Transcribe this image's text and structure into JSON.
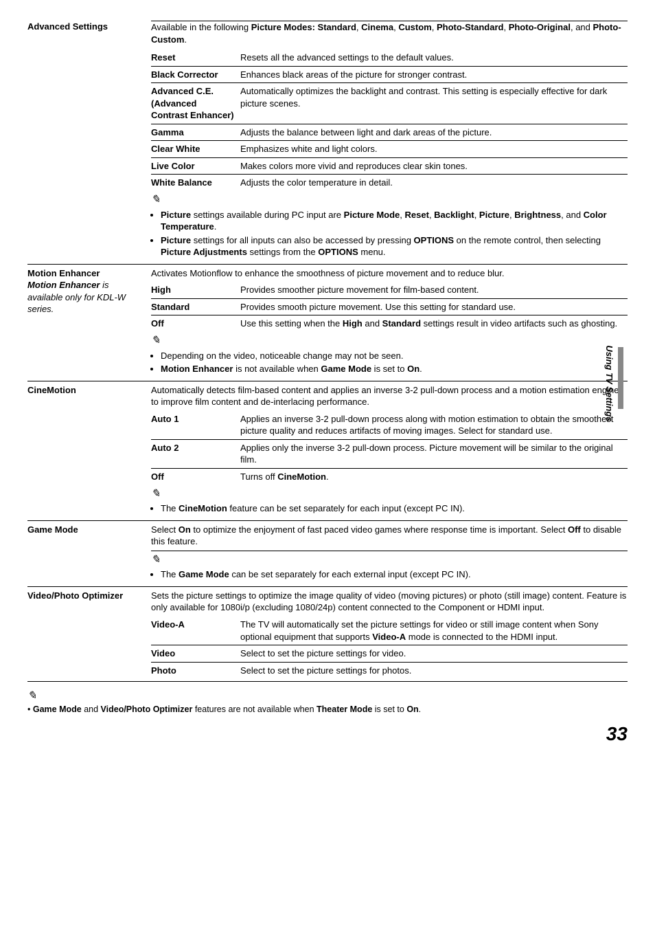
{
  "advanced_settings": {
    "label": "Advanced Settings",
    "intro": "Available in the following <b>Picture Modes: Standard</b>, <b>Cinema</b>, <b>Custom</b>, <b>Photo-Standard</b>, <b>Photo-Original</b>, and <b>Photo-Custom</b>.",
    "rows": [
      {
        "k": "Reset",
        "v": "Resets all the advanced settings to the default values."
      },
      {
        "k": "Black Corrector",
        "v": "Enhances black areas of the picture for stronger contrast."
      },
      {
        "k": "Advanced C.E. (Advanced Contrast Enhancer)",
        "v": "Automatically optimizes the backlight and contrast. This setting is especially effective for dark picture scenes."
      },
      {
        "k": "Gamma",
        "v": "Adjusts the balance between light and dark areas of the picture."
      },
      {
        "k": "Clear White",
        "v": "Emphasizes white and light colors."
      },
      {
        "k": "Live Color",
        "v": "Makes colors more vivid and reproduces clear skin tones."
      },
      {
        "k": "White Balance",
        "v": "Adjusts the color temperature in detail."
      }
    ],
    "notes": [
      "<b>Picture</b> settings available during PC input are <b>Picture Mode</b>, <b>Reset</b>, <b>Backlight</b>, <b>Picture</b>, <b>Brightness</b>, and <b>Color Temperature</b>.",
      "<b>Picture</b> settings for all inputs can also be accessed by pressing <b>OPTIONS</b> on the remote control, then selecting <b>Picture Adjustments</b> settings from the <b>OPTIONS</b> menu."
    ]
  },
  "motion_enhancer": {
    "label": "Motion Enhancer",
    "sub_label": "<b><i>Motion Enhancer</i></b><i> is available only for KDL-W series.</i>",
    "intro": "Activates Motionflow to enhance the smoothness of picture movement and to reduce blur.",
    "rows": [
      {
        "k": "High",
        "v": "Provides smoother picture movement for film-based content."
      },
      {
        "k": "Standard",
        "v": "Provides smooth picture movement. Use this setting for standard use."
      },
      {
        "k": "Off",
        "v": "Use this setting when the <b>High</b> and <b>Standard</b> settings result in video artifacts such as ghosting."
      }
    ],
    "notes": [
      "Depending on the video, noticeable change may not be seen.",
      "<b>Motion Enhancer</b> is not available when <b>Game Mode</b> is set to <b>On</b>."
    ]
  },
  "cinemotion": {
    "label": "CineMotion",
    "intro": "Automatically detects film-based content and applies an inverse 3-2 pull-down process and a motion estimation engine to improve film content and de-interlacing performance.",
    "rows": [
      {
        "k": "Auto 1",
        "v": "Applies an inverse 3-2 pull-down process along with motion estimation to obtain the smoothest picture quality and reduces artifacts of moving images. Select for standard use."
      },
      {
        "k": "Auto 2",
        "v": "Applies only the inverse 3-2 pull-down process. Picture movement will be similar to the original film."
      },
      {
        "k": "Off",
        "v": "Turns off <b>CineMotion</b>."
      }
    ],
    "notes": [
      "The <b>CineMotion</b> feature can be set separately for each input (except PC IN)."
    ]
  },
  "game_mode": {
    "label": "Game Mode",
    "intro": "Select <b>On</b> to optimize the enjoyment of fast paced video games where response time is important. Select <b>Off</b> to disable this feature.",
    "notes": [
      "The <b>Game Mode</b> can be set separately for each external input (except PC IN)."
    ]
  },
  "video_photo": {
    "label": "Video/Photo Optimizer",
    "intro": "Sets the picture settings to optimize the image quality of video (moving pictures) or photo (still image) content. Feature is only available for 1080i/p (excluding 1080/24p) content connected to the Component or HDMI input.",
    "rows": [
      {
        "k": "Video-A",
        "v": "The TV will automatically set the picture settings for video or still image content when Sony optional equipment that supports <b>Video-A</b> mode is connected to the HDMI input."
      },
      {
        "k": "Video",
        "v": "Select to set the picture settings for video."
      },
      {
        "k": "Photo",
        "v": "Select to set the picture settings for photos."
      }
    ]
  },
  "footnote": "<b>Game Mode</b> and <b>Video/Photo Optimizer</b> features are not available when <b>Theater Mode</b> is set to <b>On</b>.",
  "side_label": "Using TV Settings",
  "page_number": "33"
}
